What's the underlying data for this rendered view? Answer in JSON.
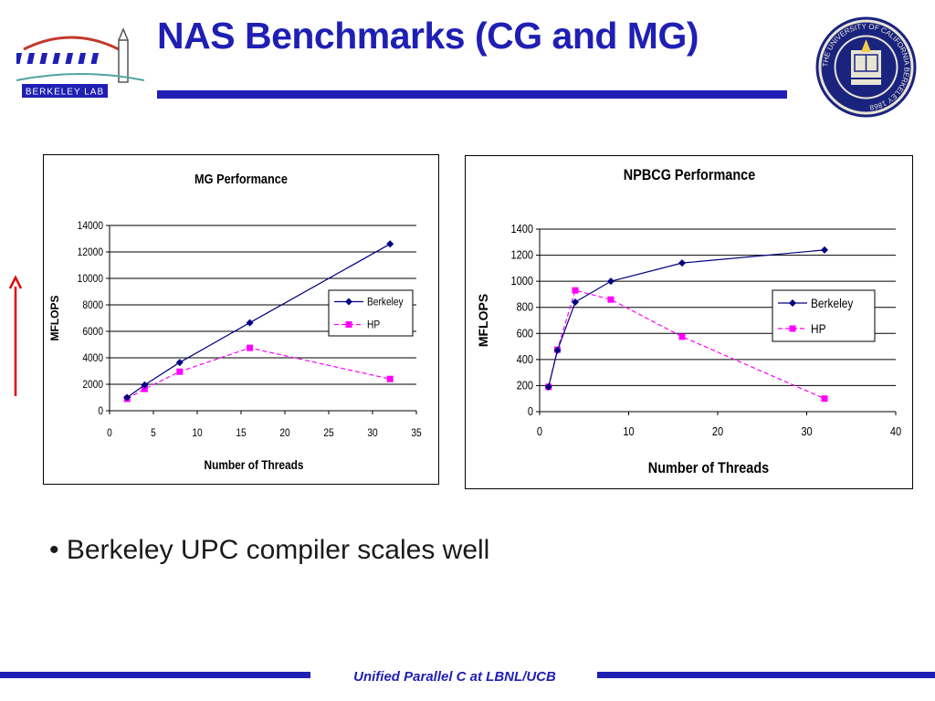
{
  "slide": {
    "title": "NAS Benchmarks (CG and MG)",
    "bullet": "Berkeley UPC compiler scales well",
    "footer": "Unified Parallel C at LBNL/UCB",
    "logo_text": "BERKELEY LAB",
    "seal_text": "THE UNIVERSITY OF CALIFORNIA BERKELEY 1868",
    "accent_color": "#1f1fb4",
    "arrow_color": "#e00000"
  },
  "chart_data": [
    {
      "type": "line",
      "title": "MG Performance",
      "xlabel": "Number of Threads",
      "ylabel": "MFLOPS",
      "xlim": [
        0,
        35
      ],
      "ylim": [
        0,
        14000
      ],
      "xticks": [
        0,
        5,
        10,
        15,
        20,
        25,
        30,
        35
      ],
      "yticks": [
        0,
        2000,
        4000,
        6000,
        8000,
        10000,
        12000,
        14000
      ],
      "grid": "horizontal",
      "legend": "right",
      "series": [
        {
          "name": "Berkeley",
          "color": "#000080",
          "marker": "diamond",
          "dash": "solid",
          "x": [
            2,
            4,
            8,
            16,
            32
          ],
          "y": [
            1000,
            1950,
            3650,
            6650,
            12600
          ]
        },
        {
          "name": "HP",
          "color": "#ff00ff",
          "marker": "square",
          "dash": "dashed",
          "x": [
            2,
            4,
            8,
            16,
            32
          ],
          "y": [
            900,
            1650,
            2950,
            4750,
            2400
          ]
        }
      ]
    },
    {
      "type": "line",
      "title": "NPBCG Performance",
      "xlabel": "Number of Threads",
      "ylabel": "MFLOPS",
      "xlim": [
        0,
        40
      ],
      "ylim": [
        0,
        1400
      ],
      "xticks": [
        0,
        10,
        20,
        30,
        40
      ],
      "yticks": [
        0,
        200,
        400,
        600,
        800,
        1000,
        1200,
        1400
      ],
      "grid": "horizontal",
      "legend": "right",
      "series": [
        {
          "name": "Berkeley",
          "color": "#000080",
          "marker": "diamond",
          "dash": "solid",
          "x": [
            1,
            2,
            4,
            8,
            16,
            32
          ],
          "y": [
            190,
            470,
            840,
            1000,
            1140,
            1240
          ]
        },
        {
          "name": "HP",
          "color": "#ff00ff",
          "marker": "square",
          "dash": "dashed",
          "x": [
            1,
            2,
            4,
            8,
            16,
            32
          ],
          "y": [
            190,
            475,
            930,
            860,
            575,
            100
          ]
        }
      ]
    }
  ]
}
